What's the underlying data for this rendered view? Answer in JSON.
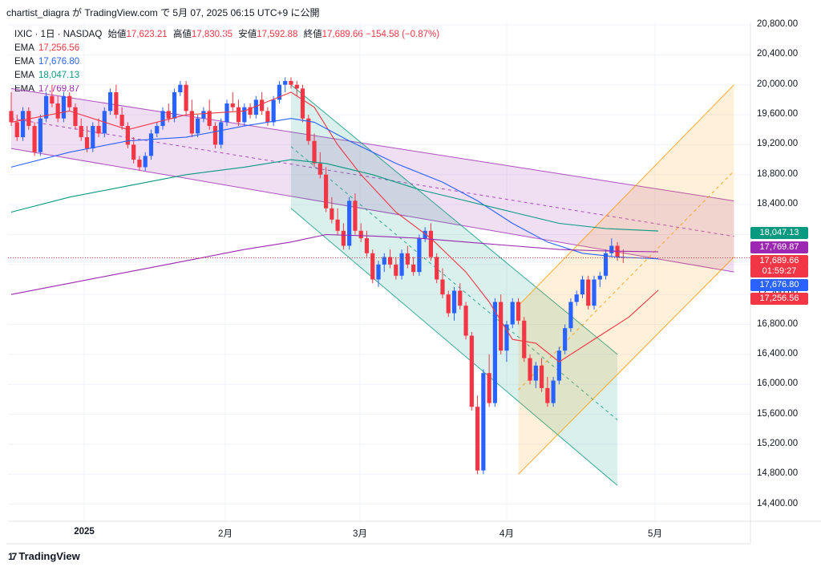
{
  "attribution": "chartist_diagra が TradingView.com で 5月 07, 2025 06:15 UTC+9 に公開",
  "footer": {
    "logo_text": "TradingView",
    "logo_mark": "17"
  },
  "legend": {
    "symbol": "IXIC · 1日 · NASDAQ",
    "open_label": "始値",
    "open": "17,623.21",
    "high_label": "高値",
    "high": "17,830.35",
    "low_label": "安値",
    "low": "17,592.88",
    "close_label": "終値",
    "close": "17,689.66",
    "change": "−154.58 (−0.87%)",
    "emas": [
      {
        "name": "EMA",
        "value": "17,256.56",
        "color": "#f23645"
      },
      {
        "name": "EMA",
        "value": "17,676.80",
        "color": "#2962ff"
      },
      {
        "name": "EMA",
        "value": "18,047.13",
        "color": "#089981"
      },
      {
        "name": "EMA",
        "value": "17,769.87",
        "color": "#9c27b0"
      }
    ]
  },
  "price_tags": [
    {
      "label": "18,047.13",
      "color": "#089981",
      "price": 18047.13
    },
    {
      "label": "17,769.87",
      "color": "#9c27b0",
      "price": 17769.87
    },
    {
      "label": "17,689.66",
      "color": "#f23645",
      "price": 17689.66
    },
    {
      "label": "01:59:27",
      "color": "#f23645",
      "price": 17560
    },
    {
      "label": "17,676.80",
      "color": "#2962ff",
      "price": 17430
    },
    {
      "label": "17,256.56",
      "color": "#f23645",
      "price": 17256.56
    }
  ],
  "chart_data": {
    "type": "candlestick",
    "y_axis": {
      "min": 14200,
      "max": 20900,
      "ticks": [
        "20,800.00",
        "20,400.00",
        "20,000.00",
        "19,600.00",
        "19,200.00",
        "18,800.00",
        "18,400.00",
        "18,000.00",
        "17,600.00",
        "17,200.00",
        "16,800.00",
        "16,400.00",
        "16,000.00",
        "15,600.00",
        "15,200.00",
        "14,800.00",
        "14,400.00"
      ],
      "tick_values": [
        20800,
        20400,
        20000,
        19600,
        19200,
        18800,
        18400,
        18000,
        17600,
        17200,
        16800,
        16400,
        16000,
        15600,
        15200,
        14800,
        14400
      ]
    },
    "x_axis": {
      "ticks": [
        {
          "label": "2025",
          "bold": true
        },
        {
          "label": "2月",
          "bold": false
        },
        {
          "label": "3月",
          "bold": false
        },
        {
          "label": "4月",
          "bold": false
        },
        {
          "label": "5月",
          "bold": false
        }
      ]
    },
    "candles": [
      [
        19650,
        19900,
        19450,
        19500
      ],
      [
        19500,
        19600,
        19250,
        19300
      ],
      [
        19300,
        19700,
        19250,
        19650
      ],
      [
        19650,
        19700,
        19400,
        19450
      ],
      [
        19450,
        19500,
        19050,
        19100
      ],
      [
        19100,
        19600,
        19050,
        19550
      ],
      [
        19550,
        19900,
        19500,
        19850
      ],
      [
        19850,
        20000,
        19700,
        19750
      ],
      [
        19750,
        19850,
        19500,
        19550
      ],
      [
        19550,
        19900,
        19500,
        19850
      ],
      [
        19850,
        19900,
        19650,
        19700
      ],
      [
        19700,
        19750,
        19400,
        19450
      ],
      [
        19450,
        19550,
        19250,
        19300
      ],
      [
        19300,
        19450,
        19100,
        19150
      ],
      [
        19150,
        19500,
        19100,
        19450
      ],
      [
        19450,
        19550,
        19300,
        19350
      ],
      [
        19350,
        19700,
        19300,
        19650
      ],
      [
        19650,
        19950,
        19600,
        19900
      ],
      [
        19900,
        20000,
        19550,
        19600
      ],
      [
        19600,
        19700,
        19400,
        19450
      ],
      [
        19450,
        19500,
        19150,
        19200
      ],
      [
        19200,
        19300,
        18950,
        19000
      ],
      [
        19000,
        19050,
        18850,
        18900
      ],
      [
        18900,
        19100,
        18850,
        19050
      ],
      [
        19050,
        19400,
        19000,
        19350
      ],
      [
        19350,
        19500,
        19300,
        19450
      ],
      [
        19450,
        19700,
        19400,
        19650
      ],
      [
        19650,
        19750,
        19500,
        19550
      ],
      [
        19550,
        19950,
        19500,
        19900
      ],
      [
        19900,
        20050,
        19850,
        20000
      ],
      [
        20000,
        20050,
        19600,
        19650
      ],
      [
        19650,
        19800,
        19300,
        19350
      ],
      [
        19350,
        19600,
        19300,
        19550
      ],
      [
        19550,
        19700,
        19500,
        19650
      ],
      [
        19650,
        19800,
        19400,
        19450
      ],
      [
        19450,
        19500,
        19150,
        19200
      ],
      [
        19200,
        19550,
        19150,
        19500
      ],
      [
        19500,
        19800,
        19450,
        19750
      ],
      [
        19750,
        19900,
        19650,
        19700
      ],
      [
        19700,
        19800,
        19450,
        19500
      ],
      [
        19500,
        19750,
        19450,
        19700
      ],
      [
        19700,
        19750,
        19550,
        19600
      ],
      [
        19600,
        19850,
        19550,
        19800
      ],
      [
        19800,
        19900,
        19600,
        19650
      ],
      [
        19650,
        19700,
        19450,
        19500
      ],
      [
        19500,
        19850,
        19450,
        19800
      ],
      [
        19800,
        20050,
        19750,
        20000
      ],
      [
        20000,
        20100,
        19900,
        20050
      ],
      [
        20050,
        20100,
        19950,
        20000
      ],
      [
        20000,
        20050,
        19850,
        19950
      ],
      [
        19950,
        20000,
        19500,
        19550
      ],
      [
        19550,
        19600,
        19200,
        19250
      ],
      [
        19250,
        19350,
        18900,
        18950
      ],
      [
        18950,
        19100,
        18750,
        18800
      ],
      [
        18800,
        18900,
        18300,
        18350
      ],
      [
        18350,
        18500,
        18150,
        18200
      ],
      [
        18200,
        18350,
        18000,
        18050
      ],
      [
        18050,
        18150,
        17800,
        17850
      ],
      [
        17850,
        18500,
        17800,
        18450
      ],
      [
        18450,
        18550,
        18000,
        18050
      ],
      [
        18050,
        18150,
        17900,
        17950
      ],
      [
        17950,
        18050,
        17700,
        17750
      ],
      [
        17750,
        17800,
        17350,
        17400
      ],
      [
        17400,
        17650,
        17300,
        17600
      ],
      [
        17600,
        17750,
        17500,
        17700
      ],
      [
        17700,
        17800,
        17550,
        17600
      ],
      [
        17600,
        17700,
        17400,
        17450
      ],
      [
        17450,
        17800,
        17400,
        17750
      ],
      [
        17750,
        17850,
        17550,
        17600
      ],
      [
        17600,
        17700,
        17450,
        17500
      ],
      [
        17500,
        18000,
        17450,
        17950
      ],
      [
        17950,
        18100,
        17900,
        18050
      ],
      [
        18050,
        18150,
        17650,
        17700
      ],
      [
        17700,
        17750,
        17350,
        17400
      ],
      [
        17400,
        17550,
        17150,
        17200
      ],
      [
        17200,
        17250,
        16900,
        16950
      ],
      [
        16950,
        17300,
        16850,
        17250
      ],
      [
        17250,
        17350,
        17000,
        17050
      ],
      [
        17050,
        17100,
        16600,
        16650
      ],
      [
        16650,
        16700,
        15650,
        15700
      ],
      [
        15700,
        15850,
        14800,
        14850
      ],
      [
        14850,
        16200,
        14800,
        16150
      ],
      [
        16150,
        16400,
        15700,
        15750
      ],
      [
        15750,
        17150,
        15700,
        17100
      ],
      [
        17100,
        17200,
        16400,
        16450
      ],
      [
        16450,
        16850,
        16300,
        16800
      ],
      [
        16800,
        17150,
        16750,
        17100
      ],
      [
        17100,
        17150,
        16800,
        16850
      ],
      [
        16850,
        16900,
        16300,
        16350
      ],
      [
        16350,
        16400,
        16000,
        16050
      ],
      [
        16050,
        16300,
        15950,
        16250
      ],
      [
        16250,
        16350,
        15900,
        15950
      ],
      [
        15950,
        16100,
        15700,
        15750
      ],
      [
        15750,
        16100,
        15700,
        16050
      ],
      [
        16050,
        16500,
        16000,
        16450
      ],
      [
        16450,
        16800,
        16400,
        16750
      ],
      [
        16750,
        17150,
        16700,
        17100
      ],
      [
        17100,
        17250,
        17050,
        17200
      ],
      [
        17200,
        17450,
        17150,
        17400
      ],
      [
        17400,
        17450,
        17000,
        17050
      ],
      [
        17050,
        17450,
        17000,
        17400
      ],
      [
        17400,
        17500,
        17300,
        17450
      ],
      [
        17450,
        17800,
        17400,
        17750
      ],
      [
        17750,
        17950,
        17700,
        17850
      ],
      [
        17850,
        17900,
        17650,
        17700
      ],
      [
        17700,
        17800,
        17620,
        17690
      ]
    ],
    "ema_series": [
      {
        "name": "EMA",
        "value": 17256.56,
        "color": "#f23645",
        "path": [
          [
            0,
            19500
          ],
          [
            10,
            19650
          ],
          [
            20,
            19400
          ],
          [
            30,
            19600
          ],
          [
            40,
            19650
          ],
          [
            48,
            19900
          ],
          [
            52,
            19700
          ],
          [
            56,
            19200
          ],
          [
            60,
            18800
          ],
          [
            66,
            18300
          ],
          [
            72,
            17950
          ],
          [
            78,
            17500
          ],
          [
            82,
            17100
          ],
          [
            86,
            16600
          ],
          [
            90,
            16550
          ],
          [
            94,
            16300
          ],
          [
            98,
            16500
          ],
          [
            102,
            16700
          ],
          [
            106,
            16900
          ],
          [
            111,
            17256
          ]
        ]
      },
      {
        "name": "EMA",
        "value": 17676.8,
        "color": "#2962ff",
        "path": [
          [
            0,
            18900
          ],
          [
            10,
            19100
          ],
          [
            20,
            19250
          ],
          [
            30,
            19300
          ],
          [
            40,
            19450
          ],
          [
            48,
            19550
          ],
          [
            52,
            19500
          ],
          [
            58,
            19250
          ],
          [
            66,
            18950
          ],
          [
            74,
            18700
          ],
          [
            80,
            18450
          ],
          [
            86,
            18150
          ],
          [
            92,
            17900
          ],
          [
            98,
            17750
          ],
          [
            104,
            17700
          ],
          [
            111,
            17676
          ]
        ]
      },
      {
        "name": "EMA",
        "value": 18047.13,
        "color": "#089981",
        "path": [
          [
            0,
            18300
          ],
          [
            10,
            18500
          ],
          [
            20,
            18650
          ],
          [
            30,
            18800
          ],
          [
            40,
            18900
          ],
          [
            48,
            19000
          ],
          [
            54,
            18950
          ],
          [
            62,
            18800
          ],
          [
            70,
            18600
          ],
          [
            78,
            18450
          ],
          [
            86,
            18300
          ],
          [
            94,
            18150
          ],
          [
            102,
            18080
          ],
          [
            111,
            18047
          ]
        ]
      },
      {
        "name": "EMA",
        "value": 17769.87,
        "color": "#9c27b0",
        "path": [
          [
            0,
            17200
          ],
          [
            10,
            17350
          ],
          [
            20,
            17500
          ],
          [
            30,
            17650
          ],
          [
            40,
            17800
          ],
          [
            48,
            17900
          ],
          [
            54,
            18000
          ],
          [
            62,
            17980
          ],
          [
            70,
            17950
          ],
          [
            78,
            17900
          ],
          [
            86,
            17850
          ],
          [
            94,
            17800
          ],
          [
            102,
            17780
          ],
          [
            111,
            17769
          ]
        ]
      }
    ],
    "channels": [
      {
        "color": "#9c27b0",
        "upper": [
          [
            0,
            19950
          ],
          [
            124,
            18450
          ]
        ],
        "lower": [
          [
            0,
            19150
          ],
          [
            124,
            17500
          ]
        ]
      },
      {
        "color": "#089981",
        "upper": [
          [
            48,
            20000
          ],
          [
            104,
            16400
          ]
        ],
        "lower": [
          [
            48,
            18350
          ],
          [
            104,
            14650
          ]
        ]
      },
      {
        "color": "#ff9800",
        "upper": [
          [
            87,
            17050
          ],
          [
            124,
            20000
          ]
        ],
        "lower": [
          [
            87,
            14800
          ],
          [
            124,
            17700
          ]
        ]
      }
    ],
    "last_close": 17689.66
  }
}
